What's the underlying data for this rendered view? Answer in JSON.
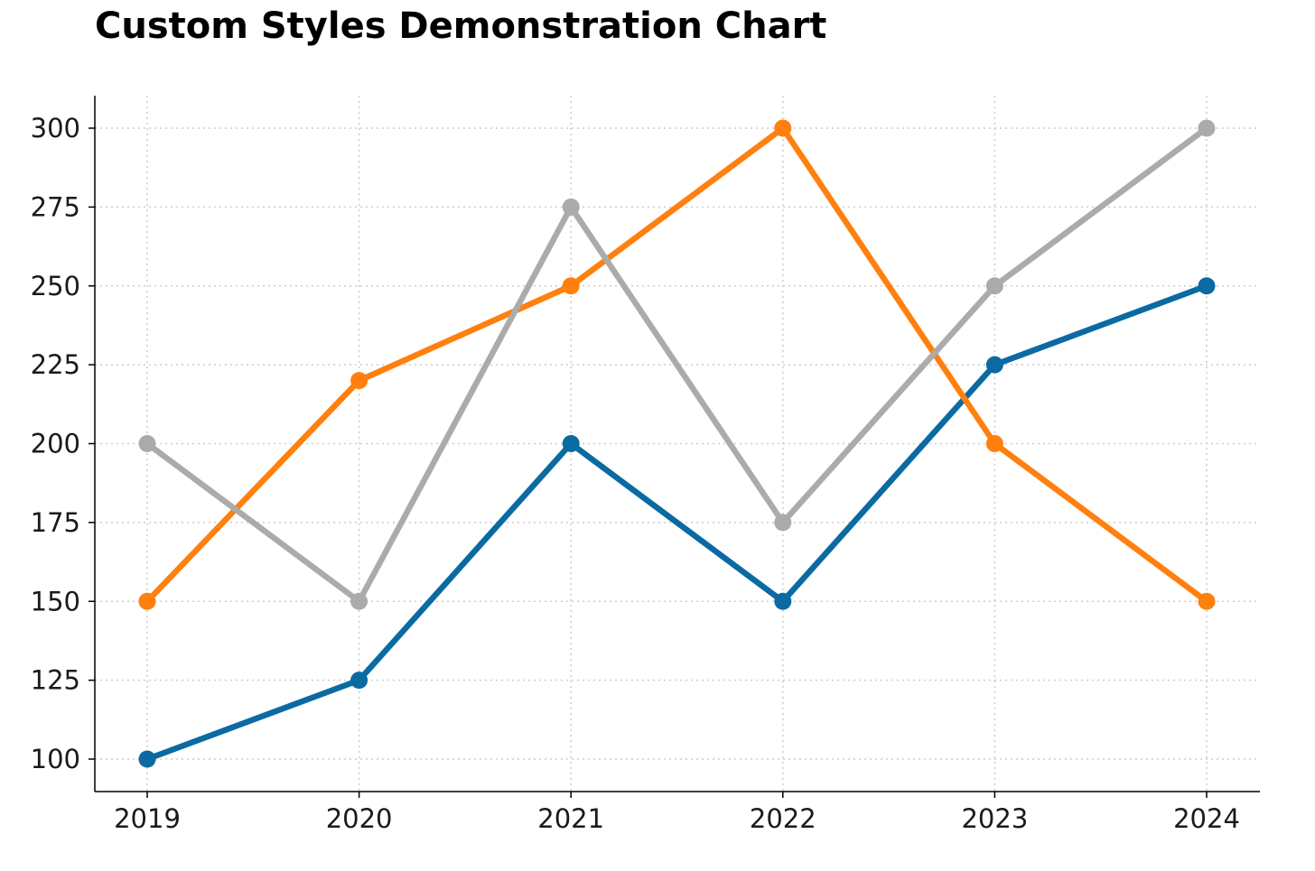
{
  "chart_data": {
    "type": "line",
    "title": "Custom Styles Demonstration Chart",
    "xlabel": "",
    "ylabel": "",
    "categories": [
      "2019",
      "2020",
      "2021",
      "2022",
      "2023",
      "2024"
    ],
    "y_ticks": [
      100,
      125,
      150,
      175,
      200,
      225,
      250,
      275,
      300
    ],
    "ylim": [
      90,
      310
    ],
    "grid": true,
    "grid_style": "dotted",
    "legend": "none",
    "series": [
      {
        "values": [
          100,
          125,
          200,
          150,
          225,
          250
        ],
        "color": "#0a6aa1"
      },
      {
        "values": [
          150,
          220,
          250,
          300,
          200,
          150
        ],
        "color": "#ff800e"
      },
      {
        "values": [
          200,
          150,
          275,
          175,
          250,
          300
        ],
        "color": "#ababab"
      }
    ]
  }
}
